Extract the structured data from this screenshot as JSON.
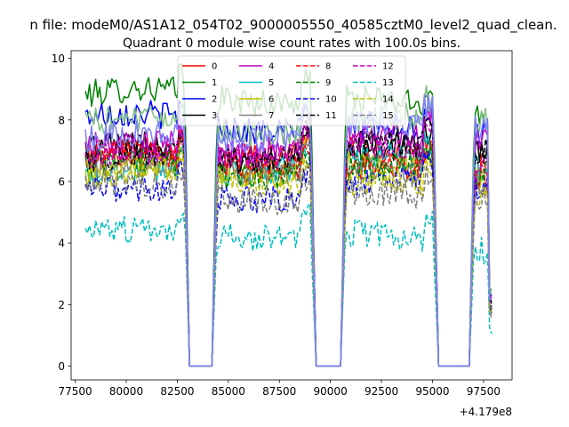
{
  "figure": {
    "suptitle": "n file: modeM0/AS1A12_054T02_9000005550_40585cztM0_level2_quad_clean.",
    "title": "Quadrant 0 module wise count rates with 100.0s bins.",
    "offset_text": "+4.179e8"
  },
  "chart_data": {
    "type": "line",
    "title": "Quadrant 0 module wise count rates with 100.0s bins.",
    "x_offset": 417900000,
    "xlim": [
      77300,
      98900
    ],
    "ylim": [
      -0.45,
      10.25
    ],
    "x_ticks": [
      77500,
      80000,
      82500,
      85000,
      87500,
      90000,
      92500,
      95000,
      97500
    ],
    "x_tick_labels": [
      "77500",
      "80000",
      "82500",
      "85000",
      "87500",
      "90000",
      "92500",
      "95000",
      "97500"
    ],
    "y_ticks": [
      0,
      2,
      4,
      6,
      8,
      10
    ],
    "y_tick_labels": [
      "0",
      "2",
      "4",
      "6",
      "8",
      "10"
    ],
    "x_start": 78000,
    "x_end": 97900,
    "bin_width": 100,
    "gaps": [
      [
        83100,
        84200
      ],
      [
        89300,
        90500
      ],
      [
        95300,
        96800
      ]
    ],
    "legend": {
      "location": "upper center",
      "ncol": 4
    },
    "series": [
      {
        "name": "0",
        "color": "#ff0000",
        "dash": "solid",
        "level": 6.7
      },
      {
        "name": "1",
        "color": "#008000",
        "dash": "solid",
        "level": 8.6
      },
      {
        "name": "2",
        "color": "#0000ff",
        "dash": "solid",
        "level": 7.9
      },
      {
        "name": "3",
        "color": "#000000",
        "dash": "solid",
        "level": 7.1
      },
      {
        "name": "4",
        "color": "#bf00bf",
        "dash": "solid",
        "level": 7.3
      },
      {
        "name": "5",
        "color": "#00bfbf",
        "dash": "solid",
        "level": 6.4
      },
      {
        "name": "6",
        "color": "#bfbf00",
        "dash": "solid",
        "level": 6.2
      },
      {
        "name": "7",
        "color": "#808080",
        "dash": "solid",
        "level": 6.3
      },
      {
        "name": "8",
        "color": "#ff0000",
        "dash": "dashed",
        "level": 6.6
      },
      {
        "name": "9",
        "color": "#008000",
        "dash": "dashed",
        "level": 6.5
      },
      {
        "name": "10",
        "color": "#0000ff",
        "dash": "dashed",
        "level": 5.8
      },
      {
        "name": "11",
        "color": "#000000",
        "dash": "dashed",
        "level": 6.9
      },
      {
        "name": "12",
        "color": "#bf00bf",
        "dash": "dashed",
        "level": 6.8
      },
      {
        "name": "13",
        "color": "#00bfbf",
        "dash": "dashed",
        "level": 4.1
      },
      {
        "name": "14",
        "color": "#bfbf00",
        "dash": "dashed",
        "level": 6.0
      },
      {
        "name": "15",
        "color": "#808080",
        "dash": "dashed",
        "level": 5.7
      },
      {
        "name": "",
        "color": "#7fbf7f",
        "dash": "solid",
        "level": 8.0
      },
      {
        "name": "",
        "color": "#7f7fff",
        "dash": "solid",
        "level": 7.6
      }
    ]
  }
}
